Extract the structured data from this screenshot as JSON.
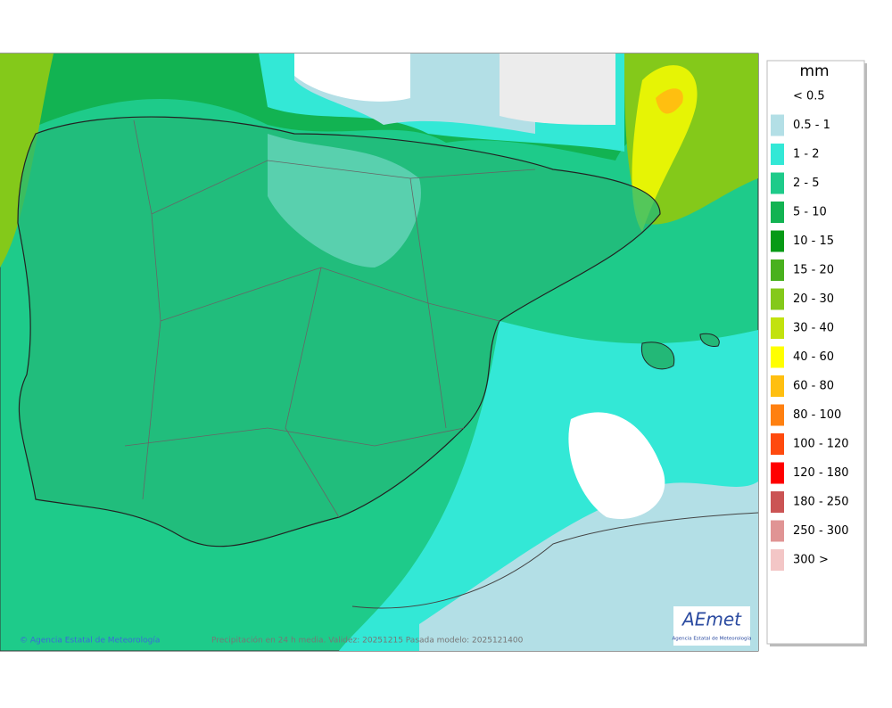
{
  "legend": {
    "title": "mm",
    "items": [
      {
        "label": "< 0.5",
        "color": "#ffffff"
      },
      {
        "label": "0.5 - 1",
        "color": "#b3dfe6"
      },
      {
        "label": "1 - 2",
        "color": "#33e8d6"
      },
      {
        "label": "2 - 5",
        "color": "#1ecb8a"
      },
      {
        "label": "5 - 10",
        "color": "#12b352"
      },
      {
        "label": "10 - 15",
        "color": "#079a16"
      },
      {
        "label": "15 - 20",
        "color": "#49b11e"
      },
      {
        "label": "20 - 30",
        "color": "#84c91a"
      },
      {
        "label": "30 - 40",
        "color": "#c2e20e"
      },
      {
        "label": "40 - 60",
        "color": "#ffff00"
      },
      {
        "label": "60 - 80",
        "color": "#ffbf10"
      },
      {
        "label": "80 - 100",
        "color": "#ff8010"
      },
      {
        "label": "100 - 120",
        "color": "#ff4a0e"
      },
      {
        "label": "120 - 180",
        "color": "#ff0000"
      },
      {
        "label": "180 - 250",
        "color": "#cb5454"
      },
      {
        "label": "250 - 300",
        "color": "#e09494"
      },
      {
        "label": "300 >",
        "color": "#f3c6c6"
      }
    ]
  },
  "footer": {
    "credit": "© Agencia Estatal de Meteorología",
    "caption": "Precipitación en 24 h media. Validez: 20251215 Pasada modelo: 2025121400"
  },
  "logo": {
    "name": "AEmet",
    "subtitle": "Agencia Estatal de Meteorología"
  }
}
